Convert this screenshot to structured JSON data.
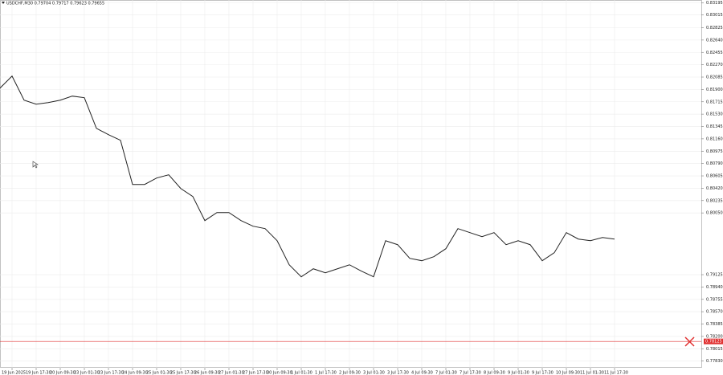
{
  "chart_data": {
    "type": "line",
    "title": "USDCHF,M30  0.79704 0.79717 0.79623 0.79655",
    "categories": [
      null,
      "19 Jun 2025",
      null,
      "19 Jun 17:30",
      null,
      "20 Jun 09:30",
      null,
      "23 Jun 01:30",
      null,
      "23 Jun 17:30",
      null,
      "24 Jun 09:30",
      null,
      "25 Jun 01:30",
      null,
      "25 Jun 17:30",
      null,
      "26 Jun 09:30",
      null,
      "27 Jun 01:30",
      null,
      "27 Jun 17:30",
      null,
      "30 Jun 09:30",
      null,
      "1 Jul 01:30",
      null,
      "1 Jul 17:30",
      null,
      "2 Jul 09:30",
      null,
      "3 Jul 01:30",
      null,
      "3 Jul 17:30",
      null,
      "4 Jul 09:30",
      null,
      "7 Jul 01:30",
      null,
      "7 Jul 17:30",
      null,
      "8 Jul 09:30",
      null,
      "9 Jul 01:30",
      null,
      "9 Jul 17:30",
      null,
      "10 Jul 09:30",
      null,
      "11 Jul 01:30",
      null,
      "11 Jul 17:30"
    ],
    "series": [
      {
        "name": "USDCHF",
        "color": "#222222",
        "values": [
          0.8192,
          0.821,
          0.81739,
          0.81679,
          0.81703,
          0.81739,
          0.818,
          0.81776,
          0.81318,
          0.81222,
          0.81138,
          0.80476,
          0.80476,
          0.80573,
          0.80621,
          0.80416,
          0.80296,
          0.79935,
          0.80055,
          0.80055,
          0.79935,
          0.79851,
          0.79815,
          0.79634,
          0.79273,
          0.79093,
          0.79213,
          0.79153,
          0.79213,
          0.79273,
          0.79177,
          0.79093,
          0.79634,
          0.79574,
          0.7937,
          0.79334,
          0.79394,
          0.79514,
          0.79815,
          0.79755,
          0.79694,
          0.79755,
          0.79574,
          0.79634,
          0.79574,
          0.79334,
          0.79454,
          0.79755,
          0.79658,
          0.79634,
          0.79682,
          0.79658
        ]
      }
    ],
    "ylim": [
      0.7773,
      0.8324
    ],
    "yticks": [
      {
        "value": 0.83195,
        "label": "0.83195"
      },
      {
        "value": 0.83015,
        "label": "0.83015"
      },
      {
        "value": 0.82825,
        "label": "0.82825"
      },
      {
        "value": 0.8264,
        "label": "0.82640"
      },
      {
        "value": 0.82455,
        "label": "0.82455"
      },
      {
        "value": 0.8227,
        "label": "0.82270"
      },
      {
        "value": 0.82085,
        "label": "0.82085"
      },
      {
        "value": 0.819,
        "label": "0.81900"
      },
      {
        "value": 0.81715,
        "label": "0.81715"
      },
      {
        "value": 0.8153,
        "label": "0.81530"
      },
      {
        "value": 0.81345,
        "label": "0.81345"
      },
      {
        "value": 0.8116,
        "label": "0.81160"
      },
      {
        "value": 0.80975,
        "label": "0.80975"
      },
      {
        "value": 0.8079,
        "label": "0.80790"
      },
      {
        "value": 0.80605,
        "label": "0.80605"
      },
      {
        "value": 0.8042,
        "label": "0.80420"
      },
      {
        "value": 0.80235,
        "label": "0.80235"
      },
      {
        "value": 0.8005,
        "label": "0.80050"
      },
      {
        "value": 0.79125,
        "label": "0.79125"
      },
      {
        "value": 0.7894,
        "label": "0.78940"
      },
      {
        "value": 0.78755,
        "label": "0.78755"
      },
      {
        "value": 0.7857,
        "label": "0.78570"
      },
      {
        "value": 0.78385,
        "label": "0.78385"
      },
      {
        "value": 0.782,
        "label": "0.78200"
      },
      {
        "value": 0.78015,
        "label": "0.78015"
      },
      {
        "value": 0.7783,
        "label": "0.77830"
      }
    ],
    "grid": true,
    "hline": {
      "value": 0.78125,
      "label": "0.78125",
      "color": "#e03030"
    }
  }
}
